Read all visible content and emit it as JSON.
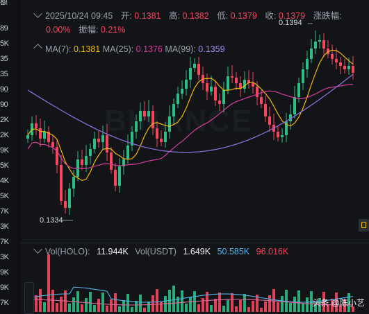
{
  "left_axis": {
    "ticks": [
      "89",
      "5K",
      "35",
      "35",
      "90",
      "90",
      "2K",
      "2K",
      "9K",
      "5K",
      "4K",
      "5K",
      "7K",
      "3K",
      "7K",
      "3K",
      "9K",
      "9K",
      "7K"
    ],
    "top_label": "额"
  },
  "header": {
    "datetime": "2025/10/24 09:45",
    "open_label": "开:",
    "open": "0.1381",
    "high_label": "高:",
    "high": "0.1382",
    "low_label": "低:",
    "low": "0.1379",
    "close_label": "收:",
    "close": "0.1379",
    "change_label": "涨跌幅:",
    "change": "0.00%",
    "amplitude_label": "振幅:",
    "amplitude": "0.21%"
  },
  "ma": {
    "ma7_label": "MA(7):",
    "ma7": "0.1381",
    "ma25_label": "MA(25):",
    "ma25": "0.1376",
    "ma99_label": "MA(99):",
    "ma99": "0.1359",
    "ma7_color": "#f0b90b",
    "ma25_color": "#d63e9b",
    "ma99_color": "#8b6fd6"
  },
  "price_tags": {
    "high": "0.1394",
    "low": "0.1334"
  },
  "volume": {
    "vol_label": "Vol(HOLO):",
    "vol_holo": "11.944K",
    "vol_usdt_label": "Vol(USDT)",
    "vol_usdt": "1.649K",
    "ma_a": "50.585K",
    "ma_b": "96.016K"
  },
  "watermark": "BINANCE",
  "attribution": "头条 @陈小艺",
  "colors": {
    "up": "#2ebd85",
    "down": "#f6465d",
    "background": "#121418"
  }
}
